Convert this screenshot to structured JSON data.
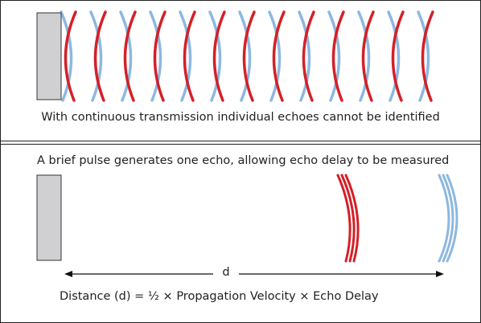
{
  "top_panel": {
    "caption": "With continuous transmission individual echoes cannot be identified"
  },
  "bottom_panel": {
    "caption": "A brief pulse generates one echo, allowing echo delay to be measured",
    "distance_label": "d",
    "formula": "Distance (d) = ½ × Propagation Velocity × Echo Delay"
  }
}
